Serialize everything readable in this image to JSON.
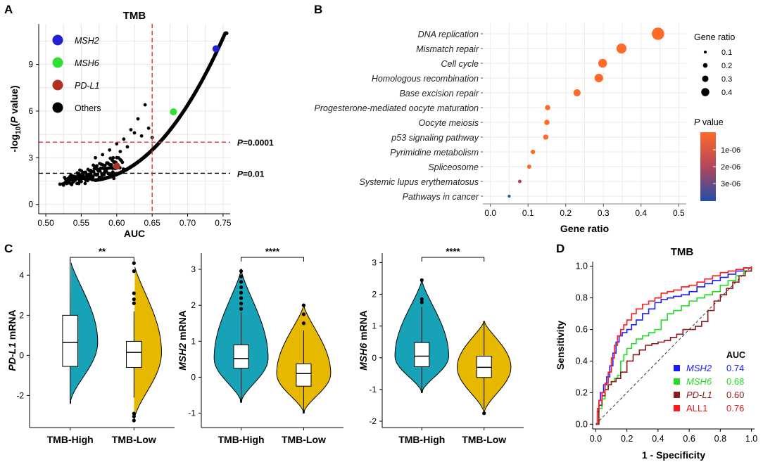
{
  "panel_letters": {
    "a": "A",
    "b": "B",
    "c": "C",
    "d": "D"
  },
  "chart_data": [
    {
      "id": "A",
      "type": "scatter",
      "title": "TMB",
      "xlabel": "AUC",
      "ylabel": "-log10(P value)",
      "ylabel_parts": [
        "-log",
        "10",
        "(",
        "P",
        " value)"
      ],
      "xlim": [
        0.49,
        0.76
      ],
      "ylim": [
        -0.6,
        11.6
      ],
      "xticks": [
        0.5,
        0.55,
        0.6,
        0.65,
        0.7,
        0.75
      ],
      "xtick_labels": [
        "0.50",
        "0.55",
        "0.60",
        "0.65",
        "0.70",
        "0.75"
      ],
      "yticks": [
        0,
        3,
        6,
        9
      ],
      "ytick_labels": [
        "0",
        "3",
        "6",
        "9"
      ],
      "hlines": [
        {
          "y": 4,
          "color": "#e03030",
          "label_italic": "P",
          "label_rest": "=0.0001"
        },
        {
          "y": 2,
          "color": "#000000",
          "label_italic": "P",
          "label_rest": "=0.01"
        }
      ],
      "vline": {
        "x": 0.65,
        "color": "#e03030"
      },
      "highlight_points": [
        {
          "name": "MSH2",
          "x": 0.74,
          "y": 10.0,
          "color": "#2020d0"
        },
        {
          "name": "MSH6",
          "x": 0.68,
          "y": 5.95,
          "color": "#30e030"
        },
        {
          "name": "PD-L1",
          "x": 0.6,
          "y": 2.45,
          "color": "#b03020"
        }
      ],
      "legend": [
        {
          "label": "MSH2",
          "color": "#2020d0",
          "italic": true
        },
        {
          "label": "MSH6",
          "color": "#30e030",
          "italic": true
        },
        {
          "label": "PD-L1",
          "color": "#b03020",
          "italic": true
        },
        {
          "label": "Others",
          "color": "#000000",
          "italic": false
        }
      ],
      "scatter_outliers": [
        [
          0.64,
          6.4
        ],
        [
          0.63,
          5.5
        ],
        [
          0.62,
          4.8
        ],
        [
          0.61,
          4.2
        ],
        [
          0.625,
          4.6
        ],
        [
          0.6,
          3.9
        ],
        [
          0.59,
          3.5
        ],
        [
          0.615,
          3.7
        ],
        [
          0.58,
          3.2
        ],
        [
          0.57,
          3.0
        ],
        [
          0.645,
          4.9
        ],
        [
          0.65,
          4.3
        ],
        [
          0.605,
          3.4
        ],
        [
          0.595,
          3.0
        ],
        [
          0.635,
          4.4
        ]
      ]
    },
    {
      "id": "B",
      "type": "scatter",
      "xlabel": "Gene ratio",
      "xlim": [
        -0.02,
        0.52
      ],
      "xticks": [
        0,
        0.1,
        0.2,
        0.3,
        0.4,
        0.5
      ],
      "xtick_labels": [
        "0.0",
        "0.1",
        "0.2",
        "0.3",
        "0.4",
        "0.5"
      ],
      "categories": [
        "DNA replication",
        "Mismatch repair",
        "Cell cycle",
        "Homologous recombination",
        "Base excision repair",
        "Progesterone-mediated oocyte maturation",
        "Oocyte meiosis",
        "p53 signaling pathway",
        "Pyrimidine metabolism",
        "Spliceosome",
        "Systemic lupus erythematosus",
        "Pathways in cancer"
      ],
      "gene_ratio": [
        0.445,
        0.348,
        0.298,
        0.288,
        0.23,
        0.152,
        0.15,
        0.147,
        0.113,
        0.103,
        0.078,
        0.05
      ],
      "p_value": [
        1e-07,
        1e-07,
        1e-07,
        1e-07,
        1e-07,
        1e-07,
        1e-07,
        1e-07,
        1e-07,
        1.5e-07,
        2e-06,
        3.8e-06
      ],
      "size_legend_title": "Gene ratio",
      "size_legend": [
        {
          "label": "0.1",
          "value": 0.1
        },
        {
          "label": "0.2",
          "value": 0.2
        },
        {
          "label": "0.3",
          "value": 0.3
        },
        {
          "label": "0.4",
          "value": 0.4
        }
      ],
      "color_legend_title_italic": "P",
      "color_legend_title_rest": " value",
      "color_legend_ticks": [
        "1e-06",
        "2e-06",
        "3e-06"
      ],
      "color_low": "#ff6a28",
      "color_high": "#1f4fa8"
    },
    {
      "id": "C1",
      "type": "violin",
      "gene": "PD-L1",
      "ylabel_rest": " mRNA",
      "categories": [
        "TMB-High",
        "TMB-Low"
      ],
      "ylim": [
        -3.6,
        5.1
      ],
      "yticks": [
        -2,
        0,
        2,
        4
      ],
      "ytick_labels": [
        "-2",
        "0",
        "2",
        "4"
      ],
      "significance": "**",
      "groups": [
        {
          "color": "#17a2b8",
          "min": -2.4,
          "max": 4.8,
          "q1": -0.55,
          "median": 0.65,
          "q3": 2.0,
          "whisker_low": -2.4,
          "whisker_high": 4.8,
          "outliers": []
        },
        {
          "color": "#e6b800",
          "min": -3.3,
          "max": 4.6,
          "q1": -0.6,
          "median": 0.15,
          "q3": 0.7,
          "whisker_low": -2.1,
          "whisker_high": 2.2,
          "outliers": [
            -2.9,
            -3.05,
            -3.25,
            2.6,
            2.8,
            3.1,
            4.2,
            4.6
          ]
        }
      ]
    },
    {
      "id": "C2",
      "type": "violin",
      "gene": "MSH2",
      "ylabel_rest": " mRNA",
      "categories": [
        "TMB-High",
        "TMB-Low"
      ],
      "ylim": [
        -1.4,
        3.45
      ],
      "yticks": [
        -1,
        0,
        1,
        2,
        3
      ],
      "ytick_labels": [
        "-1",
        "0",
        "1",
        "2",
        "3"
      ],
      "significance": "****",
      "groups": [
        {
          "color": "#17a2b8",
          "min": -0.7,
          "max": 3.0,
          "q1": 0.25,
          "median": 0.52,
          "q3": 0.9,
          "whisker_low": -0.7,
          "whisker_high": 1.8,
          "outliers": [
            1.9,
            2.05,
            2.2,
            2.35,
            2.5,
            2.65,
            2.8,
            2.95
          ]
        },
        {
          "color": "#e6b800",
          "min": -1.0,
          "max": 2.0,
          "q1": -0.25,
          "median": 0.1,
          "q3": 0.37,
          "whisker_low": -1.0,
          "whisker_high": 1.3,
          "outliers": [
            1.5,
            1.75,
            2.0
          ]
        }
      ]
    },
    {
      "id": "C3",
      "type": "violin",
      "gene": "MSH6",
      "ylabel_rest": " mRNA",
      "categories": [
        "TMB-High",
        "TMB-Low"
      ],
      "ylim": [
        -2.2,
        3.3
      ],
      "yticks": [
        -2,
        -1,
        0,
        1,
        2,
        3
      ],
      "ytick_labels": [
        "-2",
        "-1",
        "0",
        "1",
        "2",
        "3"
      ],
      "significance": "****",
      "groups": [
        {
          "color": "#17a2b8",
          "min": -1.1,
          "max": 2.45,
          "q1": -0.28,
          "median": 0.05,
          "q3": 0.48,
          "whisker_low": -1.1,
          "whisker_high": 1.6,
          "outliers": [
            1.75,
            1.85,
            2.45
          ]
        },
        {
          "color": "#e6b800",
          "min": -1.75,
          "max": 1.15,
          "q1": -0.62,
          "median": -0.3,
          "q3": 0.05,
          "whisker_low": -1.6,
          "whisker_high": 1.1,
          "outliers": [
            -1.75
          ]
        }
      ]
    },
    {
      "id": "D",
      "type": "line",
      "title": "TMB",
      "xlabel": "1 - Specificity",
      "ylabel": "Sensitivity",
      "xlim": [
        -0.02,
        1.02
      ],
      "ylim": [
        -0.03,
        1.03
      ],
      "xticks": [
        0,
        0.2,
        0.4,
        0.6,
        0.8,
        1.0
      ],
      "xtick_labels": [
        "0.0",
        "0.2",
        "0.4",
        "0.6",
        "0.8",
        "1.0"
      ],
      "yticks": [
        0,
        0.2,
        0.4,
        0.6,
        0.8,
        1.0
      ],
      "ytick_labels": [
        "0.0",
        "0.2",
        "0.4",
        "0.6",
        "0.8",
        "1.0"
      ],
      "legend_title": "AUC",
      "series": [
        {
          "name": "MSH2",
          "auc": "0.74",
          "color": "#1a1aff",
          "label_color": "#1a1aff",
          "italic": true,
          "x": [
            0,
            0.01,
            0.02,
            0.03,
            0.05,
            0.07,
            0.09,
            0.11,
            0.13,
            0.15,
            0.17,
            0.2,
            0.23,
            0.26,
            0.3,
            0.34,
            0.38,
            0.42,
            0.46,
            0.5,
            0.55,
            0.6,
            0.65,
            0.7,
            0.75,
            0.8,
            0.85,
            0.9,
            0.95,
            1
          ],
          "y": [
            0,
            0.08,
            0.15,
            0.2,
            0.25,
            0.3,
            0.37,
            0.45,
            0.52,
            0.56,
            0.58,
            0.6,
            0.63,
            0.66,
            0.7,
            0.73,
            0.77,
            0.79,
            0.8,
            0.81,
            0.82,
            0.84,
            0.87,
            0.89,
            0.91,
            0.93,
            0.95,
            0.97,
            0.99,
            1
          ]
        },
        {
          "name": "MSH6",
          "auc": "0.68",
          "color": "#22dd22",
          "label_color": "#22dd22",
          "italic": true,
          "x": [
            0,
            0.02,
            0.04,
            0.06,
            0.08,
            0.1,
            0.12,
            0.14,
            0.16,
            0.18,
            0.2,
            0.23,
            0.26,
            0.3,
            0.34,
            0.38,
            0.42,
            0.46,
            0.5,
            0.55,
            0.6,
            0.65,
            0.7,
            0.75,
            0.8,
            0.85,
            0.9,
            0.95,
            1
          ],
          "y": [
            0,
            0.1,
            0.16,
            0.22,
            0.25,
            0.27,
            0.29,
            0.31,
            0.4,
            0.44,
            0.48,
            0.51,
            0.54,
            0.56,
            0.58,
            0.6,
            0.66,
            0.7,
            0.72,
            0.75,
            0.78,
            0.8,
            0.82,
            0.84,
            0.88,
            0.91,
            0.94,
            0.97,
            1
          ]
        },
        {
          "name": "PD-L1",
          "auc": "0.60",
          "color": "#8b1a1a",
          "label_color": "#8b1a1a",
          "italic": true,
          "x": [
            0,
            0.02,
            0.04,
            0.06,
            0.08,
            0.1,
            0.13,
            0.16,
            0.2,
            0.24,
            0.28,
            0.32,
            0.36,
            0.4,
            0.44,
            0.48,
            0.52,
            0.56,
            0.6,
            0.64,
            0.68,
            0.72,
            0.76,
            0.8,
            0.84,
            0.88,
            0.92,
            0.96,
            1
          ],
          "y": [
            0,
            0.12,
            0.18,
            0.22,
            0.25,
            0.27,
            0.29,
            0.33,
            0.4,
            0.44,
            0.47,
            0.5,
            0.51,
            0.52,
            0.53,
            0.55,
            0.57,
            0.6,
            0.6,
            0.62,
            0.65,
            0.72,
            0.78,
            0.82,
            0.86,
            0.9,
            0.94,
            0.97,
            1
          ]
        },
        {
          "name": "ALL1",
          "auc": "0.76",
          "color": "#ff1a1a",
          "label_color": "#e01a1a",
          "italic": false,
          "x": [
            0,
            0.01,
            0.02,
            0.04,
            0.06,
            0.08,
            0.1,
            0.12,
            0.14,
            0.16,
            0.18,
            0.2,
            0.23,
            0.26,
            0.3,
            0.34,
            0.38,
            0.42,
            0.46,
            0.5,
            0.55,
            0.6,
            0.65,
            0.7,
            0.75,
            0.8,
            0.85,
            0.9,
            0.95,
            1
          ],
          "y": [
            0,
            0.1,
            0.15,
            0.2,
            0.26,
            0.33,
            0.42,
            0.5,
            0.56,
            0.6,
            0.63,
            0.66,
            0.7,
            0.73,
            0.76,
            0.78,
            0.8,
            0.83,
            0.84,
            0.85,
            0.87,
            0.88,
            0.9,
            0.92,
            0.94,
            0.96,
            0.97,
            0.98,
            0.99,
            1
          ]
        }
      ]
    }
  ]
}
